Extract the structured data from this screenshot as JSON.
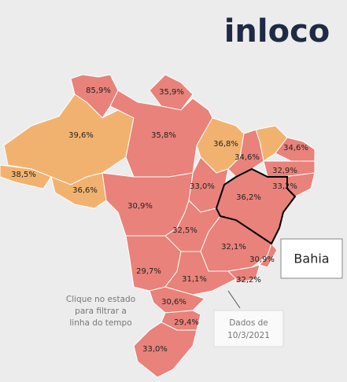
{
  "logo": "inloco",
  "states": [
    {
      "value": 85.9,
      "label": "85,9%",
      "color": "#e8827a"
    },
    {
      "value": 35.9,
      "label": "35,9%",
      "color": "#e8827a"
    },
    {
      "value": 39.6,
      "label": "39,6%",
      "color": "#f2b26f"
    },
    {
      "value": 35.8,
      "label": "35,8%",
      "color": "#e8827a"
    },
    {
      "value": 36.8,
      "label": "36,8%",
      "color": "#f2b26f"
    },
    {
      "value": 34.6,
      "label": "34,6%",
      "color": "#e8827a"
    },
    {
      "value": 34.6,
      "label": "34,6%",
      "color": "#e8827a"
    },
    {
      "value": 32.9,
      "label": "32,9%",
      "color": "#e8827a"
    },
    {
      "value": 33.2,
      "label": "33,2%",
      "color": "#e8827a"
    },
    {
      "value": 38.5,
      "label": "38,5%",
      "color": "#f2b26f"
    },
    {
      "value": 36.6,
      "label": "36,6%",
      "color": "#f2b26f"
    },
    {
      "value": 33.0,
      "label": "33,0%",
      "color": "#e8827a"
    },
    {
      "value": 36.2,
      "label": "36,2%",
      "color": "#e8827a"
    },
    {
      "value": 30.9,
      "label": "30,9%",
      "color": "#e8827a"
    },
    {
      "value": 32.5,
      "label": "32,5%",
      "color": "#e8827a"
    },
    {
      "value": 32.1,
      "label": "32,1%",
      "color": "#e8827a"
    },
    {
      "value": 30.9,
      "label": "30,9%",
      "color": "#e8827a"
    },
    {
      "value": 29.7,
      "label": "29,7%",
      "color": "#e8827a"
    },
    {
      "value": 31.1,
      "label": "31,1%",
      "color": "#e8827a"
    },
    {
      "value": 32.2,
      "label": "32,2%",
      "color": "#e8827a"
    },
    {
      "value": 30.6,
      "label": "30,6%",
      "color": "#e8827a"
    },
    {
      "value": 29.4,
      "label": "29,4%",
      "color": "#e8827a"
    },
    {
      "value": 33.0,
      "label": "33,0%",
      "color": "#e8827a"
    }
  ],
  "tooltip": "Bahia",
  "hint": [
    "Clique no estado",
    "para filtrar a",
    "linha do tempo"
  ],
  "source": [
    "Dados de",
    "10/3/2021"
  ]
}
